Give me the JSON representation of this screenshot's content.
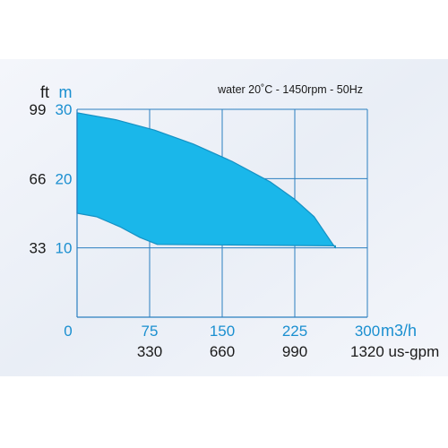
{
  "chart_data": {
    "type": "area",
    "annotation": "water 20˚C - 1450rpm - 50Hz",
    "colors": {
      "fill": "#1ab7ea",
      "stroke": "#1591c4",
      "axis_blue": "#1a8fd0",
      "grid": "#2b7fc0",
      "dark_text": "#1a1a1a"
    },
    "xaxis": {
      "unit_label": "m3/h",
      "ticks": [
        "0",
        "75",
        "150",
        "225",
        "300"
      ],
      "values": [
        0,
        75,
        150,
        225,
        300
      ],
      "secondary_ticks": [
        "330",
        "660",
        "990",
        "1320 us-gpm"
      ],
      "range": [
        0,
        300
      ]
    },
    "yaxis": {
      "unit_label_m": "m",
      "unit_label_ft": "ft",
      "ticks_m": [
        "10",
        "20",
        "30"
      ],
      "values_m": [
        10,
        20,
        30
      ],
      "ticks_ft": [
        "33",
        "66",
        "99"
      ],
      "range": [
        0,
        30
      ]
    },
    "grid": true,
    "region": {
      "upper_boundary": [
        {
          "x": 0,
          "y": 29.5
        },
        {
          "x": 40,
          "y": 28.5
        },
        {
          "x": 80,
          "y": 27.0
        },
        {
          "x": 120,
          "y": 25.0
        },
        {
          "x": 160,
          "y": 22.5
        },
        {
          "x": 200,
          "y": 19.5
        },
        {
          "x": 225,
          "y": 17.0
        },
        {
          "x": 245,
          "y": 14.5
        },
        {
          "x": 262,
          "y": 11.0
        },
        {
          "x": 267,
          "y": 10.0
        }
      ],
      "lower_boundary": [
        {
          "x": 0,
          "y": 15.0
        },
        {
          "x": 20,
          "y": 14.5
        },
        {
          "x": 45,
          "y": 13.0
        },
        {
          "x": 65,
          "y": 11.5
        },
        {
          "x": 83,
          "y": 10.5
        },
        {
          "x": 267,
          "y": 10.3
        }
      ]
    }
  }
}
